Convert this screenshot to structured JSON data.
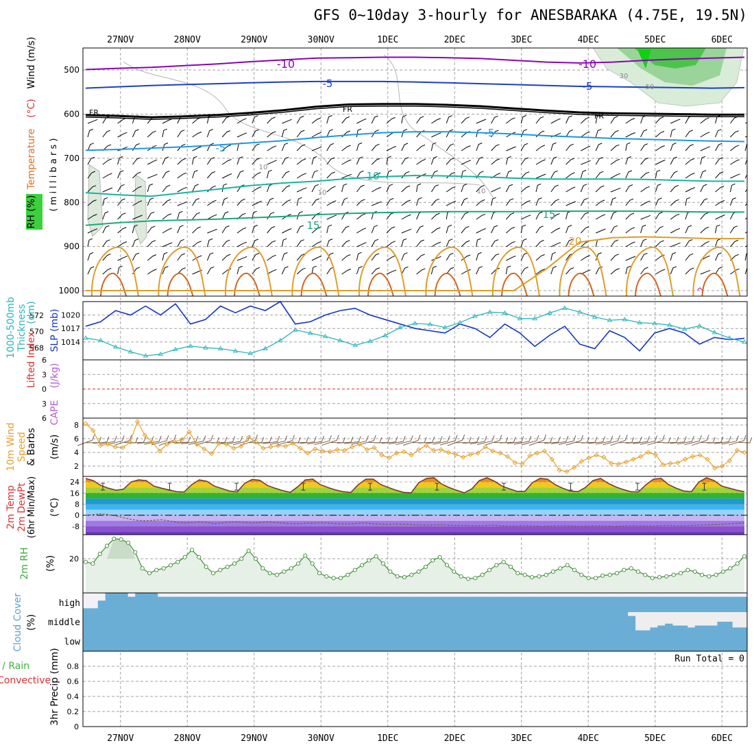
{
  "title": "GFS 0~10day 3-hourly for ANESBARAKA (4.75E, 19.5N)",
  "dates": [
    "27NOV",
    "28NOV",
    "29NOV",
    "30NOV",
    "1DEC",
    "2DEC",
    "3DEC",
    "4DEC",
    "5DEC",
    "6DEC"
  ],
  "colors": {
    "purple": "#8b00b8",
    "blue": "#1c3ccc",
    "black": "#000000",
    "sky": "#1c96e6",
    "teal": "#16b4a0",
    "green": "#1aa878",
    "orange": "#e09c28",
    "dkorange": "#d2641e",
    "slp": "#1432c8",
    "thick": "#2ab4bc",
    "wind10": "#e6a02a",
    "rh": "#3c8c32",
    "cloud": "#6aaed6",
    "red": "#e03030",
    "cape": "#b45ad2"
  },
  "chart_data": [
    {
      "type": "contour",
      "panel": "upper-air",
      "ylabel": [
        "Temperature",
        "(°C)",
        "Wind",
        "(m/s)",
        "RH",
        "(%)",
        "millibars"
      ],
      "ylim": [
        1000,
        450
      ],
      "y_ticks": [
        500,
        600,
        700,
        800,
        900,
        1000
      ],
      "contour_labels": [
        "-10",
        "-10",
        "-5",
        "-5",
        "FR",
        "FR",
        "FR",
        "-5",
        "10",
        "15",
        "15",
        "20",
        "10",
        "10",
        "10",
        "30",
        "50"
      ],
      "isotherms": [
        {
          "label": "-10",
          "color": "purple",
          "p": [
            499,
            496,
            494,
            490,
            486,
            481,
            477,
            473,
            472,
            471,
            471,
            472,
            474,
            478,
            482,
            484,
            482,
            478,
            475,
            473,
            471
          ]
        },
        {
          "label": "-5",
          "color": "blue",
          "p": [
            541,
            538,
            535,
            533,
            531,
            529,
            527,
            526,
            526,
            526,
            527,
            529,
            531,
            533,
            535,
            537,
            538,
            539,
            540,
            541,
            540
          ]
        },
        {
          "label": "FR",
          "color": "black",
          "p": [
            602,
            604,
            607,
            605,
            602,
            597,
            591,
            583,
            578,
            577,
            577,
            579,
            582,
            587,
            592,
            596,
            598,
            599,
            600,
            601,
            601
          ]
        },
        {
          "label": "-5",
          "color": "sky",
          "p": [
            682,
            680,
            677,
            674,
            670,
            665,
            660,
            653,
            647,
            642,
            640,
            640,
            642,
            645,
            649,
            652,
            655,
            657,
            659,
            661,
            662
          ]
        },
        {
          "label": "10",
          "color": "teal",
          "p": [
            778,
            783,
            786,
            778,
            770,
            762,
            756,
            752,
            746,
            742,
            739,
            740,
            742,
            745,
            747,
            747,
            747,
            748,
            750,
            752,
            752
          ]
        },
        {
          "label": "15",
          "color": "green",
          "p": [
            852,
            846,
            842,
            840,
            838,
            835,
            832,
            828,
            825,
            823,
            822,
            821,
            821,
            821,
            820,
            820,
            820,
            820,
            821,
            822,
            822
          ]
        },
        {
          "label": "20",
          "color": "orange",
          "p": [
            1000,
            1000,
            1000,
            1000,
            1000,
            1000,
            1000,
            1000,
            1000,
            1000,
            1000,
            1000,
            1000,
            1000,
            950,
            890,
            880,
            878,
            880,
            882,
            882
          ]
        }
      ]
    },
    {
      "type": "line",
      "panel": "slp-thickness",
      "ylabel": [
        "1000-500mb",
        "Thickness",
        "(dm)",
        "SLP",
        "(mb)"
      ],
      "series": [
        {
          "name": "SLP",
          "color": "slp",
          "ylim": [
            1010,
            1023
          ],
          "y_ticks": [
            1014,
            1017,
            1020
          ],
          "values": [
            1017.5,
            1018.5,
            1021,
            1020,
            1022,
            1020,
            1022.5,
            1018,
            1019,
            1022,
            1020.5,
            1022,
            1021,
            1023,
            1018,
            1018.5,
            1020,
            1021,
            1021.5,
            1020,
            1019,
            1018,
            1017,
            1016.5,
            1016,
            1018,
            1017,
            1015,
            1018,
            1016,
            1013,
            1015.5,
            1017.5,
            1013.5,
            1012.5,
            1016.5,
            1015,
            1012,
            1016,
            1017,
            1016,
            1013.5,
            1015,
            1014.5,
            1014.8
          ]
        },
        {
          "name": "Thickness",
          "color": "thick",
          "ylim": [
            566.5,
            573.7
          ],
          "y_ticks": [
            568,
            570,
            572
          ],
          "values": [
            569.2,
            568.9,
            568.1,
            567.5,
            567.0,
            567.2,
            567.8,
            568.2,
            568.0,
            567.9,
            567.6,
            567.3,
            567.9,
            568.9,
            570.2,
            569.8,
            569.4,
            568.9,
            568.3,
            568.8,
            569.5,
            570.5,
            571.0,
            570.9,
            570.5,
            571.1,
            571.9,
            572.4,
            572.3,
            571.6,
            571.6,
            572.3,
            572.9,
            572.4,
            571.8,
            571.4,
            571.5,
            571.1,
            571.0,
            570.8,
            570.3,
            570.7,
            569.9,
            569.2,
            568.7
          ]
        }
      ]
    },
    {
      "type": "line",
      "panel": "stability",
      "ylabel": [
        "Lifted Index",
        "CAPE",
        "(J/kg)"
      ],
      "ylim": [
        6,
        -6
      ],
      "y_ticks": [
        -6,
        -3,
        0,
        3,
        6
      ],
      "y_tick_labels": [
        "6",
        "3",
        "0",
        "3",
        "6"
      ],
      "series": [
        {
          "name": "Lifted Index",
          "color": "red",
          "values": [
            0,
            0
          ]
        }
      ]
    },
    {
      "type": "line",
      "panel": "wind10m",
      "ylabel": [
        "10m",
        "Wind",
        "Speed",
        "& Barbs",
        "(m/s)"
      ],
      "ylim": [
        0.5,
        9
      ],
      "y_ticks": [
        2,
        4,
        6,
        8
      ],
      "series": [
        {
          "name": "10m Wind Speed",
          "color": "wind10",
          "values": [
            8.2,
            7.2,
            5.0,
            5.2,
            4.8,
            4.7,
            5.5,
            8.5,
            6.5,
            5.5,
            4.2,
            5.2,
            5.6,
            5.8,
            7.0,
            5.2,
            4.5,
            3.8,
            5.3,
            5.2,
            4.6,
            4.9,
            6.2,
            5.5,
            4.6,
            4.8,
            5.0,
            4.9,
            5.3,
            4.6,
            3.9,
            4.5,
            4.2,
            4.1,
            4.4,
            4.3,
            4.8,
            5.2,
            4.4,
            4.7,
            3.6,
            3.2,
            3.9,
            4.1,
            3.6,
            4.4,
            5.0,
            4.3,
            4.4,
            4.0,
            3.7,
            3.3,
            3.7,
            3.9,
            4.8,
            4.2,
            3.9,
            3.4,
            2.5,
            2.3,
            3.5,
            3.9,
            4.2,
            3.0,
            1.4,
            1.2,
            1.8,
            2.7,
            3.2,
            3.6,
            3.3,
            2.4,
            2.3,
            2.6,
            3.0,
            3.4,
            4.0,
            3.7,
            2.2,
            2.4,
            2.5,
            3.0,
            3.4,
            3.6,
            3.0,
            1.7,
            2.0,
            2.8,
            4.3,
            4.0
          ]
        }
      ]
    },
    {
      "type": "area",
      "panel": "temperature",
      "ylabel": [
        "2m Temp",
        "2m DewPt",
        "(6hr Min/Max)",
        "(°C)"
      ],
      "ylim": [
        -14,
        28
      ],
      "y_ticks": [
        -8,
        0,
        8,
        16,
        24
      ],
      "series": [
        {
          "name": "2m Temp",
          "values": [
            26.5,
            25,
            21.5,
            19.5,
            18,
            18.8,
            24,
            25.5,
            25,
            21,
            19.5,
            18.2,
            17,
            16.8,
            22,
            25.5,
            24.5,
            21,
            19.2,
            17.5,
            16.8,
            23,
            25.8,
            25.2,
            21.5,
            19.5,
            17.8,
            16.5,
            20.5,
            25.5,
            26,
            22,
            20,
            18.2,
            17,
            16.4,
            22,
            26,
            26,
            22,
            20,
            18,
            16.5,
            16.2,
            23.5,
            26.5,
            27,
            22.5,
            20,
            18,
            16.2,
            19,
            25,
            27,
            24.5,
            21,
            19,
            17.2,
            17.2,
            23.5,
            26.5,
            26,
            22,
            19.5,
            17.5,
            17,
            20,
            25,
            26.5,
            23,
            20.5,
            18.5,
            17,
            16.8,
            22,
            26,
            26.5,
            22,
            19.5,
            17.5,
            17,
            24,
            27,
            25,
            21,
            19.5,
            18,
            17
          ]
        },
        {
          "name": "2m DewPt",
          "values": [
            0,
            0.5,
            1,
            0.5,
            -0.5,
            -1.8,
            -3,
            -3.8,
            -4,
            -3.6,
            -3.3,
            -4,
            -5,
            -5.5,
            -5.2,
            -4.8,
            -5.2,
            -6,
            -5.5,
            -5,
            -4.8,
            -5.2,
            -5.5,
            -5.3,
            -4.8,
            -5.2,
            -5.6,
            -6,
            -6.1,
            -5.8,
            -5.7,
            -5.4,
            -5.6,
            -6,
            -6.3,
            -6.2,
            -5.8,
            -5.5,
            -6.2,
            -6.5,
            -6.6,
            -6.5,
            -6.4,
            -6.8,
            -7.1,
            -7.2,
            -7,
            -6.9,
            -7.2,
            -7.4,
            -7.3,
            -7.4,
            -7.5,
            -7.3,
            -7.2,
            -7.6,
            -7.8,
            -7.7,
            -7.5,
            -7.7,
            -7.9,
            -7.8,
            -7.6,
            -7.5,
            -7.7,
            -7.9,
            -7.8,
            -7.6,
            -7.7,
            -7.8,
            -7.9,
            -7.7,
            -7.5,
            -7.6,
            -7.8,
            -7.7,
            -7.4,
            -7.3,
            -7.5,
            -7.6,
            -7.4,
            -7.2,
            -7,
            -6.8,
            -6.6,
            -6.2,
            -5.8,
            -5.5
          ]
        }
      ]
    },
    {
      "type": "area",
      "panel": "rh2m",
      "ylabel": [
        "2m RH",
        "(%)"
      ],
      "ylim": [
        0,
        35
      ],
      "y_ticks": [
        20
      ],
      "series": [
        {
          "name": "2m RH",
          "color": "rh",
          "values": [
            18,
            17,
            23,
            28,
            32.5,
            32,
            30,
            24,
            14,
            11,
            13,
            14,
            16,
            18,
            21,
            25.5,
            21,
            15,
            11,
            13,
            15,
            17,
            20,
            25,
            20,
            14,
            11,
            10,
            12,
            14,
            17,
            22,
            17,
            11,
            9,
            8,
            8,
            10,
            13,
            16,
            19,
            21.5,
            17,
            12,
            9,
            8.5,
            10,
            12,
            15,
            19,
            21,
            16,
            12,
            9,
            7.5,
            8,
            10,
            13,
            16,
            18,
            15,
            11,
            10,
            8.5,
            9,
            10,
            12,
            14,
            16,
            13,
            10,
            8,
            8,
            9.5,
            10,
            11,
            13,
            14,
            12,
            10,
            8,
            8.5,
            9,
            10,
            11,
            13,
            12,
            10,
            9,
            10,
            12,
            14,
            17,
            21.5
          ]
        }
      ]
    },
    {
      "type": "heatmap",
      "panel": "cloud",
      "ylabel": [
        "Cloud Cover",
        "(%)"
      ],
      "categories": [
        "high",
        "middle",
        "low"
      ],
      "high_cover": [
        0.2,
        0.2,
        0.6,
        1,
        1,
        1,
        0.8,
        1,
        1,
        1,
        0.8,
        0.8,
        0.8,
        0.8,
        0.8,
        0.8,
        0.8,
        0.8,
        0.8,
        0.8,
        0.8,
        0.8,
        0.8,
        0.8,
        0.8,
        0.8,
        0.8,
        0.8,
        0.8,
        0.8,
        0.8,
        0.8,
        0.8,
        0.8,
        0.8,
        0.8,
        0.8,
        0.8,
        0.8,
        0.8,
        0.8,
        0.8,
        0.8,
        0.8,
        0.8,
        0.8,
        0.8,
        0.8,
        0.8,
        0.8,
        0.8,
        0.8,
        0.8,
        0.8,
        0.8,
        0.8,
        0.8,
        0.8,
        0.8,
        0.8,
        0.8,
        0.8,
        0.8,
        0.8,
        0.8,
        0.8,
        0.8,
        0.8,
        0.8,
        0.8,
        0.8,
        0.8,
        0.8,
        0.8,
        0.8,
        0.8,
        0.8,
        0.8,
        0.8,
        0.8,
        0.8,
        0.8,
        0.8,
        0.8,
        0.8,
        0.8,
        0.8,
        0.8,
        0.8
      ],
      "middle_cover": [
        1,
        1,
        1,
        1,
        1,
        1,
        1,
        1,
        1,
        1,
        1,
        1,
        1,
        1,
        1,
        1,
        1,
        1,
        1,
        1,
        1,
        1,
        1,
        1,
        1,
        1,
        1,
        1,
        1,
        1,
        1,
        1,
        1,
        1,
        1,
        1,
        1,
        1,
        1,
        1,
        1,
        1,
        1,
        1,
        1,
        1,
        1,
        1,
        1,
        1,
        1,
        1,
        1,
        1,
        1,
        1,
        1,
        1,
        1,
        1,
        1,
        1,
        1,
        1,
        1,
        1,
        1,
        1,
        1,
        1,
        1,
        1,
        1,
        0.8,
        0.05,
        0.05,
        0.2,
        0.3,
        0.4,
        0.3,
        0.3,
        0.2,
        0.3,
        0.3,
        0.3,
        0.5,
        0.5,
        0.2,
        0.2
      ],
      "low_cover": [
        1,
        1,
        1,
        1,
        1,
        1,
        1,
        1,
        1,
        1,
        1,
        1,
        1,
        1,
        1,
        1,
        1,
        1,
        1,
        1,
        1,
        1,
        1,
        1,
        1,
        1,
        1,
        1,
        1,
        1,
        1,
        1,
        1,
        1,
        1,
        1,
        1,
        1,
        1,
        1,
        1,
        1,
        1,
        1,
        1,
        1,
        1,
        1,
        1,
        1,
        1,
        1,
        1,
        1,
        1,
        1,
        1,
        1,
        1,
        1,
        1,
        1,
        1,
        1,
        1,
        1,
        1,
        1,
        1,
        1,
        1,
        1,
        1,
        1,
        1,
        1,
        1,
        1,
        1,
        1,
        1,
        1,
        1,
        1,
        1,
        1,
        1,
        1,
        1
      ]
    },
    {
      "type": "bar",
      "panel": "precip",
      "ylabel": [
        "Total / Rain",
        "Convective",
        "3hr Precip",
        "(mm)"
      ],
      "ylim": [
        0,
        1
      ],
      "y_ticks": [
        0,
        0.2,
        0.4,
        0.6,
        0.8
      ],
      "annotation": "Run Total = 0",
      "values": [
        0
      ]
    }
  ]
}
